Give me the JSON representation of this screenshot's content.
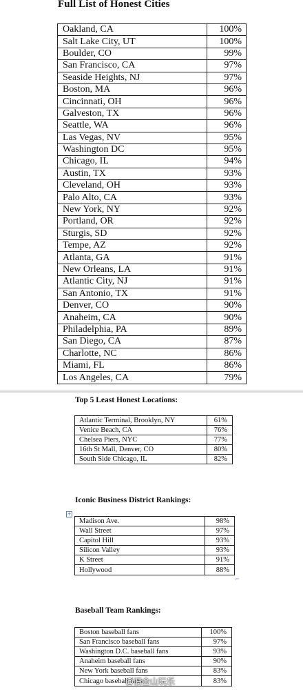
{
  "main": {
    "title": "Full List of Honest Cities",
    "rows": [
      {
        "city": "Oakland, CA",
        "pct": "100%"
      },
      {
        "city": "Salt Lake City, UT",
        "pct": "100%"
      },
      {
        "city": "Boulder, CO",
        "pct": "99%"
      },
      {
        "city": "San Francisco, CA",
        "pct": "97%"
      },
      {
        "city": "Seaside Heights, NJ",
        "pct": "97%"
      },
      {
        "city": "Boston, MA",
        "pct": "96%"
      },
      {
        "city": "Cincinnati, OH",
        "pct": "96%"
      },
      {
        "city": "Galveston, TX",
        "pct": "96%"
      },
      {
        "city": "Seattle, WA",
        "pct": "96%"
      },
      {
        "city": "Las Vegas, NV",
        "pct": "95%"
      },
      {
        "city": "Washington DC",
        "pct": "95%"
      },
      {
        "city": "Chicago, IL",
        "pct": "94%"
      },
      {
        "city": "Austin, TX",
        "pct": "93%"
      },
      {
        "city": "Cleveland, OH",
        "pct": "93%"
      },
      {
        "city": "Palo Alto, CA",
        "pct": "93%"
      },
      {
        "city": "New York, NY",
        "pct": "92%"
      },
      {
        "city": "Portland, OR",
        "pct": "92%"
      },
      {
        "city": "Sturgis, SD",
        "pct": "92%"
      },
      {
        "city": "Tempe, AZ",
        "pct": "92%"
      },
      {
        "city": "Atlanta, GA",
        "pct": "91%"
      },
      {
        "city": "New Orleans, LA",
        "pct": "91%"
      },
      {
        "city": "Atlantic City, NJ",
        "pct": "91%"
      },
      {
        "city": "San Antonio, TX",
        "pct": "91%"
      },
      {
        "city": "Denver, CO",
        "pct": "90%"
      },
      {
        "city": "Anaheim, CA",
        "pct": "90%"
      },
      {
        "city": "Philadelphia, PA",
        "pct": "89%"
      },
      {
        "city": "San Diego, CA",
        "pct": "87%"
      },
      {
        "city": "Charlotte, NC",
        "pct": "86%"
      },
      {
        "city": "Miami, FL",
        "pct": "86%"
      },
      {
        "city": "Los Angeles, CA",
        "pct": "79%"
      }
    ]
  },
  "least": {
    "title": "Top 5 Least Honest Locations:",
    "rows": [
      {
        "name": "Atlantic Terminal, Brooklyn, NY",
        "pct": "61%"
      },
      {
        "name": "Venice Beach, CA",
        "pct": "76%"
      },
      {
        "name": "Chelsea Piers, NYC",
        "pct": "77%"
      },
      {
        "name": "16th St Mall, Denver, CO",
        "pct": "80%"
      },
      {
        "name": "South Side Chicago, IL",
        "pct": "82%"
      }
    ]
  },
  "district": {
    "title": "Iconic Business District Rankings:",
    "rows": [
      {
        "name": "Madison Ave.",
        "pct": "98%"
      },
      {
        "name": "Wall Street",
        "pct": "97%"
      },
      {
        "name": "Capitol Hill",
        "pct": "93%"
      },
      {
        "name": "Silicon Valley",
        "pct": "93%"
      },
      {
        "name": "K Street",
        "pct": "91%"
      },
      {
        "name": "Hollywood",
        "pct": "88%"
      }
    ]
  },
  "baseball": {
    "title": "Baseball Team Rankings:",
    "rows": [
      {
        "name": "Boston baseball fans",
        "pct": "100%"
      },
      {
        "name": "San Francisco baseball fans",
        "pct": "97%"
      },
      {
        "name": "Washington D.C. baseball fans",
        "pct": "93%"
      },
      {
        "name": "Anaheim baseball fans",
        "pct": "90%"
      },
      {
        "name": "New York baseball fans",
        "pct": "83%"
      },
      {
        "name": "Chicago baseball fans",
        "pct": "83%"
      }
    ]
  },
  "watermark": "@旧金山玩乐"
}
